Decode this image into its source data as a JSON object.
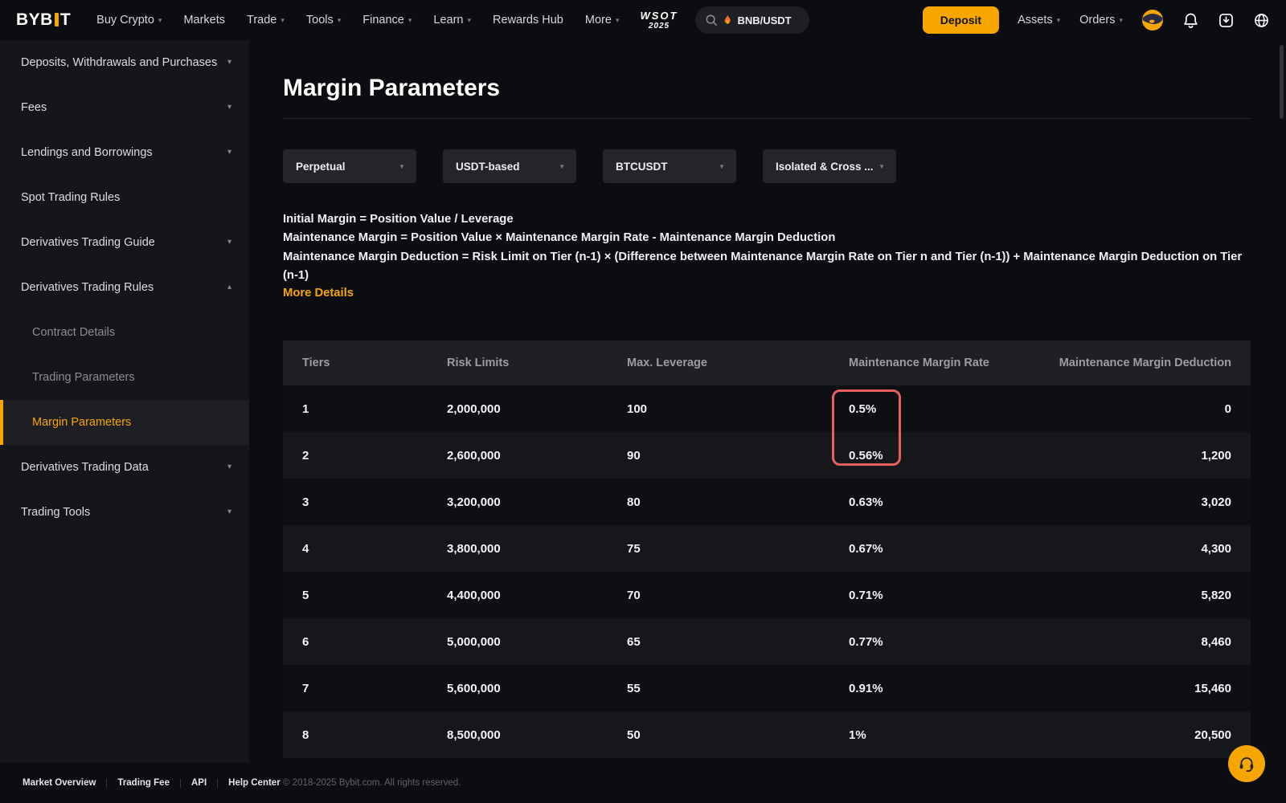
{
  "colors": {
    "accent": "#f7a600",
    "highlight": "#e8605d"
  },
  "top_nav": {
    "logo": {
      "prefix": "BYB",
      "suffix": "T"
    },
    "items": [
      {
        "label": "Buy Crypto",
        "chevron": true
      },
      {
        "label": "Markets",
        "chevron": false
      },
      {
        "label": "Trade",
        "chevron": true
      },
      {
        "label": "Tools",
        "chevron": true
      },
      {
        "label": "Finance",
        "chevron": true
      },
      {
        "label": "Learn",
        "chevron": true
      },
      {
        "label": "Rewards Hub",
        "chevron": false
      },
      {
        "label": "More",
        "chevron": true
      }
    ],
    "wsot": {
      "line1": "WSOT",
      "line2": "2025"
    },
    "search": {
      "value": "BNB/USDT",
      "icon": "search-icon",
      "flame_icon": "flame-icon"
    },
    "deposit_label": "Deposit",
    "account_menus": [
      {
        "label": "Assets",
        "chevron": true
      },
      {
        "label": "Orders",
        "chevron": true
      }
    ],
    "icons": [
      "avatar",
      "bell-icon",
      "download-icon",
      "globe-icon"
    ]
  },
  "sidebar": {
    "items": [
      {
        "label": "Deposits, Withdrawals and Purchases",
        "chevron": "down",
        "sub": false,
        "active": false
      },
      {
        "label": "Fees",
        "chevron": "down",
        "sub": false,
        "active": false
      },
      {
        "label": "Lendings and Borrowings",
        "chevron": "down",
        "sub": false,
        "active": false
      },
      {
        "label": "Spot Trading Rules",
        "chevron": null,
        "sub": false,
        "active": false
      },
      {
        "label": "Derivatives Trading Guide",
        "chevron": "down",
        "sub": false,
        "active": false
      },
      {
        "label": "Derivatives Trading Rules",
        "chevron": "up",
        "sub": false,
        "active": false
      },
      {
        "label": "Contract Details",
        "chevron": null,
        "sub": true,
        "active": false
      },
      {
        "label": "Trading Parameters",
        "chevron": null,
        "sub": true,
        "active": false
      },
      {
        "label": "Margin Parameters",
        "chevron": null,
        "sub": true,
        "active": true
      },
      {
        "label": "Derivatives Trading Data",
        "chevron": "down",
        "sub": false,
        "active": false
      },
      {
        "label": "Trading Tools",
        "chevron": "down",
        "sub": false,
        "active": false
      }
    ]
  },
  "main": {
    "title": "Margin Parameters",
    "filters": [
      {
        "value": "Perpetual"
      },
      {
        "value": "USDT-based"
      },
      {
        "value": "BTCUSDT"
      },
      {
        "value": "Isolated & Cross ..."
      }
    ],
    "formulas": [
      "Initial Margin = Position Value / Leverage",
      "Maintenance Margin = Position Value × Maintenance Margin Rate - Maintenance Margin Deduction",
      "Maintenance Margin Deduction = Risk Limit on Tier (n-1) × (Difference between Maintenance Margin Rate on Tier n and Tier (n-1)) + Maintenance Margin Deduction on Tier (n-1)"
    ],
    "more_details_label": "More Details",
    "table": {
      "headers": [
        "Tiers",
        "Risk Limits",
        "Max. Leverage",
        "Maintenance Margin Rate",
        "Maintenance Margin Deduction"
      ],
      "rows": [
        {
          "cells": [
            "1",
            "2,000,000",
            "100",
            "0.5%",
            "0"
          ]
        },
        {
          "cells": [
            "2",
            "2,600,000",
            "90",
            "0.56%",
            "1,200"
          ]
        },
        {
          "cells": [
            "3",
            "3,200,000",
            "80",
            "0.63%",
            "3,020"
          ]
        },
        {
          "cells": [
            "4",
            "3,800,000",
            "75",
            "0.67%",
            "4,300"
          ]
        },
        {
          "cells": [
            "5",
            "4,400,000",
            "70",
            "0.71%",
            "5,820"
          ]
        },
        {
          "cells": [
            "6",
            "5,000,000",
            "65",
            "0.77%",
            "8,460"
          ]
        },
        {
          "cells": [
            "7",
            "5,600,000",
            "55",
            "0.91%",
            "15,460"
          ]
        },
        {
          "cells": [
            "8",
            "8,500,000",
            "50",
            "1%",
            "20,500"
          ]
        }
      ],
      "highlighted_cells": [
        "0.5%",
        "0.56%"
      ]
    }
  },
  "footer": {
    "links": [
      "Market Overview",
      "Trading Fee",
      "API",
      "Help Center"
    ],
    "copyright": "© 2018-2025 Bybit.com. All rights reserved."
  }
}
